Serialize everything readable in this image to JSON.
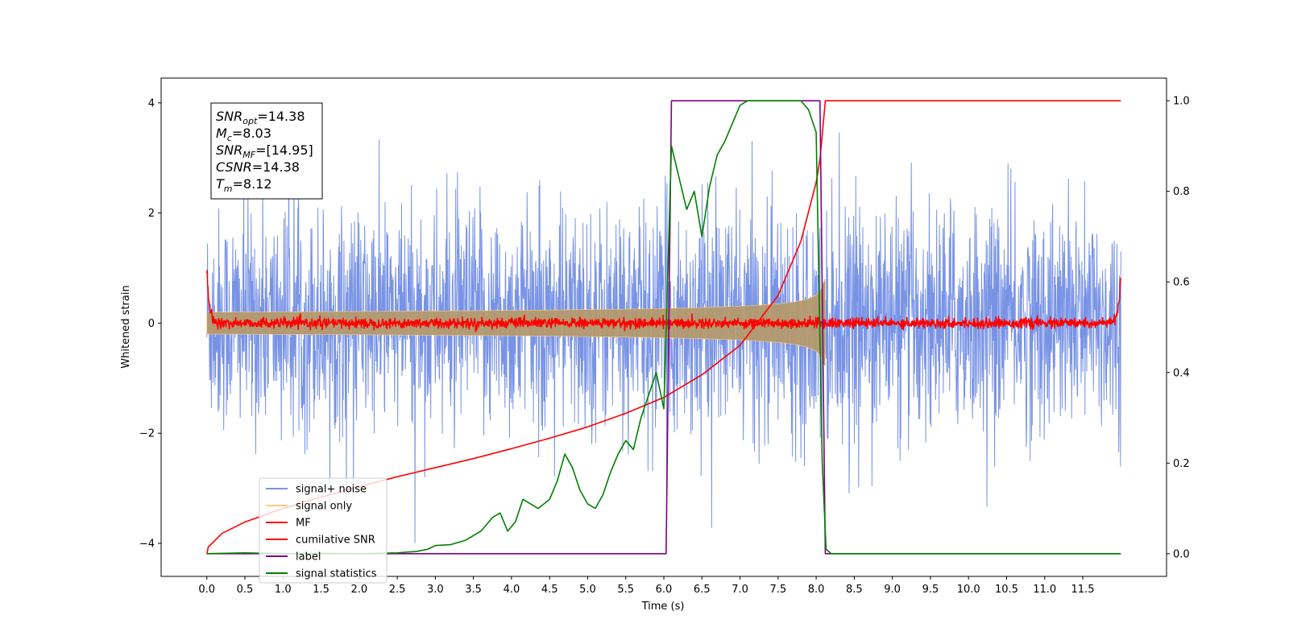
{
  "chart_data": {
    "type": "line",
    "xlabel": "Time (s)",
    "ylabel": "Whitened strain",
    "xlim": [
      -0.6,
      12.6
    ],
    "ylim": [
      -4.6,
      4.45
    ],
    "y2lim": [
      -0.05,
      1.05
    ],
    "x_ticks": [
      "0.0",
      "0.5",
      "1.0",
      "1.5",
      "2.0",
      "2.5",
      "3.0",
      "3.5",
      "4.0",
      "4.5",
      "5.0",
      "5.5",
      "6.0",
      "6.5",
      "7.0",
      "7.5",
      "8.0",
      "8.5",
      "9.0",
      "9.5",
      "10.0",
      "10.5",
      "11.0",
      "11.5"
    ],
    "y_ticks": [
      "4",
      "2",
      "0",
      "−2",
      "−4"
    ],
    "y_tick_values": [
      4,
      2,
      0,
      -2,
      -4
    ],
    "y2_ticks": [
      "1.0",
      "0.8",
      "0.6",
      "0.4",
      "0.2",
      "0.0"
    ],
    "y2_tick_values": [
      1.0,
      0.8,
      0.6,
      0.4,
      0.2,
      0.0
    ],
    "annotation": {
      "lines": [
        {
          "main": "SNR",
          "sub": "opt",
          "rest": "=14.38"
        },
        {
          "main": "M",
          "sub": "c",
          "rest": "=8.03"
        },
        {
          "main": "SNR",
          "sub": "MF",
          "rest": "=[14.95]"
        },
        {
          "main": "CSNR",
          "sub": "",
          "rest": "=14.38"
        },
        {
          "main": "T",
          "sub": "m",
          "rest": "=8.12"
        }
      ]
    },
    "legend": {
      "placement": "lower-left",
      "entries": [
        "signal+ noise",
        "signal only",
        "MF",
        "cumilative SNR",
        "label",
        "signal statistics"
      ]
    },
    "series": [
      {
        "name": "signal+ noise",
        "axis": "left",
        "color": "#7893e6",
        "kind": "noise",
        "x_range": [
          0.0,
          12.0
        ],
        "typical_band": [
          -1.5,
          1.6
        ],
        "peak_range": [
          -4.1,
          4.0
        ]
      },
      {
        "name": "signal only",
        "axis": "left",
        "color": "#ffcb80",
        "kind": "chirp",
        "x_range": [
          0.0,
          8.12
        ],
        "amplitude_at_end": 1.0,
        "amplitude_at_start": 0.03
      },
      {
        "name": "MF",
        "axis": "left",
        "color": "#ff0000",
        "kind": "mf",
        "x_range": [
          0.0,
          12.0
        ],
        "edge_value": 1.0,
        "band": 0.12
      },
      {
        "name": "cumilative SNR",
        "axis": "right",
        "color": "#ff0000",
        "x": [
          0.0,
          0.02,
          0.2,
          0.5,
          1.0,
          1.5,
          2.0,
          2.5,
          3.0,
          3.5,
          4.0,
          4.5,
          5.0,
          5.5,
          6.0,
          6.5,
          7.0,
          7.5,
          7.8,
          8.0,
          8.05,
          8.12,
          12.0
        ],
        "y": [
          0.0,
          0.015,
          0.045,
          0.07,
          0.1,
          0.125,
          0.148,
          0.17,
          0.19,
          0.21,
          0.232,
          0.255,
          0.28,
          0.31,
          0.345,
          0.395,
          0.46,
          0.57,
          0.69,
          0.82,
          0.87,
          1.0,
          1.0
        ]
      },
      {
        "name": "label",
        "axis": "right",
        "color": "#800080",
        "x": [
          0.0,
          6.03,
          6.1,
          8.05,
          8.12,
          12.0
        ],
        "y": [
          0.0,
          0.0,
          1.0,
          1.0,
          0.0,
          0.0
        ]
      },
      {
        "name": "signal statistics",
        "axis": "right",
        "color": "#008000",
        "x": [
          0.0,
          0.5,
          1.0,
          1.5,
          2.0,
          2.5,
          2.75,
          2.9,
          3.0,
          3.2,
          3.4,
          3.5,
          3.6,
          3.75,
          3.85,
          3.95,
          4.05,
          4.15,
          4.25,
          4.35,
          4.5,
          4.6,
          4.7,
          4.8,
          4.9,
          5.0,
          5.1,
          5.2,
          5.3,
          5.4,
          5.5,
          5.6,
          5.7,
          5.8,
          5.9,
          6.0,
          6.1,
          6.2,
          6.3,
          6.4,
          6.5,
          6.6,
          6.7,
          6.8,
          6.9,
          7.0,
          7.1,
          7.2,
          7.4,
          7.6,
          7.8,
          7.9,
          8.0,
          8.08,
          8.13,
          8.2,
          12.0
        ],
        "y": [
          0.0,
          0.002,
          0.0,
          0.001,
          0.0,
          0.002,
          0.005,
          0.01,
          0.018,
          0.02,
          0.03,
          0.04,
          0.05,
          0.08,
          0.09,
          0.05,
          0.07,
          0.12,
          0.11,
          0.1,
          0.12,
          0.16,
          0.22,
          0.19,
          0.14,
          0.11,
          0.1,
          0.13,
          0.18,
          0.22,
          0.25,
          0.23,
          0.3,
          0.35,
          0.4,
          0.32,
          0.9,
          0.83,
          0.76,
          0.8,
          0.7,
          0.81,
          0.88,
          0.91,
          0.95,
          0.99,
          1.0,
          1.0,
          1.0,
          1.0,
          1.0,
          0.98,
          0.93,
          0.2,
          0.01,
          0.0,
          0.0
        ]
      }
    ]
  }
}
